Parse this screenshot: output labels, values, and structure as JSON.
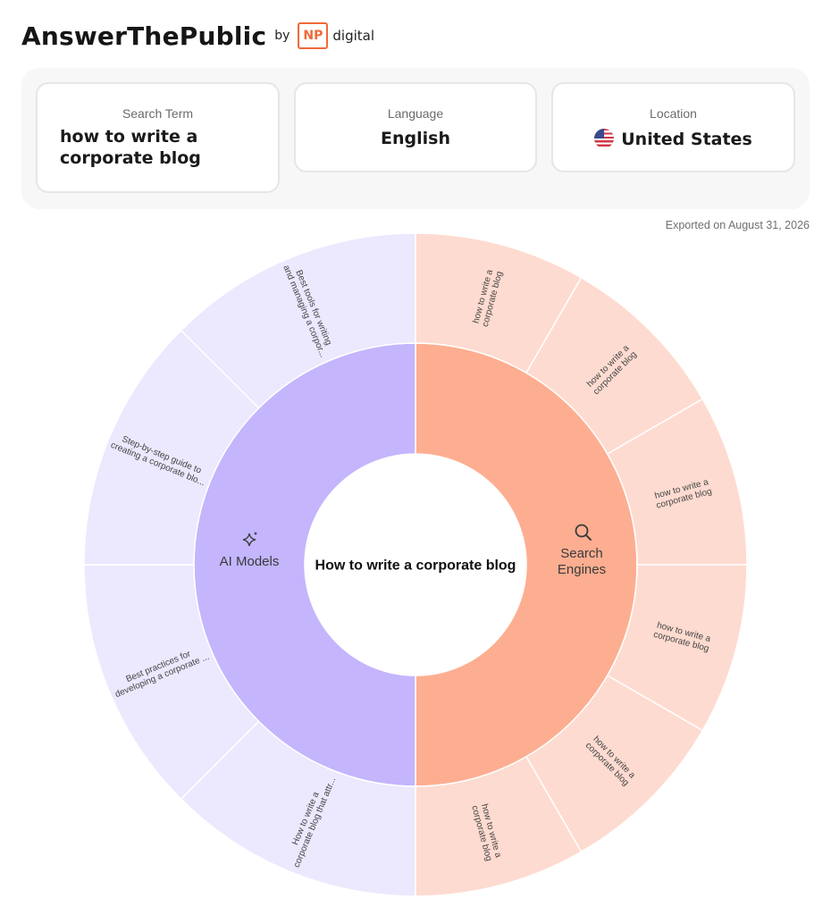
{
  "header": {
    "brand": "AnswerThePublic",
    "by": "by",
    "partner_badge": "NP",
    "partner_name": "digital"
  },
  "search": {
    "term_label": "Search Term",
    "term_value": "how to write a corporate blog",
    "language_label": "Language",
    "language_value": "English",
    "location_label": "Location",
    "location_value": "United States",
    "location_flag": "us-flag-icon"
  },
  "exported": "Exported on August 31, 2026",
  "wheel": {
    "center_label": "How to write a corporate blog",
    "colors": {
      "ai_inner": "#c4b5fd",
      "ai_outer": "#ece8fe",
      "search_inner": "#fdae91",
      "search_outer": "#fedbd0"
    },
    "categories": [
      {
        "name": "Search Engines",
        "lines": [
          "Search",
          "Engines"
        ],
        "icon": "magnifier-icon"
      },
      {
        "name": "AI Models",
        "lines": [
          "AI Models"
        ],
        "icon": "sparkle-icon"
      }
    ],
    "search_engines": [
      [
        "how to write a",
        "corporate blog"
      ],
      [
        "how to write a",
        "corporate blog"
      ],
      [
        "how to write a",
        "corporate blog"
      ],
      [
        "how to write a",
        "corporate blog"
      ],
      [
        "how to write a",
        "corporate blog"
      ],
      [
        "how to write a",
        "corporate blog"
      ]
    ],
    "ai_models": [
      [
        "How to write a",
        "corporate blog that attr..."
      ],
      [
        "Best practices for",
        "developing a corporate ..."
      ],
      [
        "Step-by-step guide to",
        "creating a corporate blo..."
      ],
      [
        "Best tools for writing",
        "and managing a corpor..."
      ]
    ]
  }
}
